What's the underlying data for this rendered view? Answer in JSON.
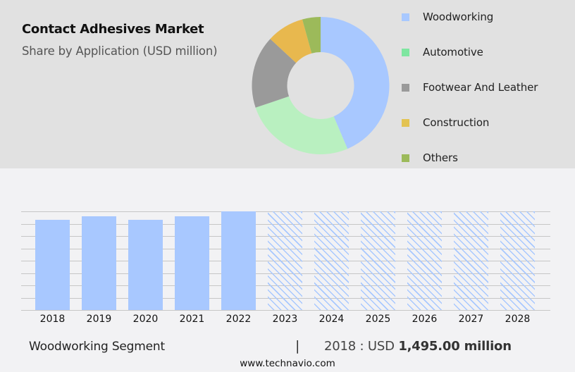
{
  "header": {
    "title": "Contact Adhesives Market",
    "subtitle": "Share by Application (USD million)"
  },
  "legend": [
    {
      "label": "Woodworking",
      "color": "#a8c8ff"
    },
    {
      "label": "Automotive",
      "color": "#7ee6a0"
    },
    {
      "label": "Footwear And Leather",
      "color": "#9a9a9a"
    },
    {
      "label": "Construction",
      "color": "#e3c352"
    },
    {
      "label": "Others",
      "color": "#9cba5a"
    }
  ],
  "footer": {
    "segment": "Woodworking Segment",
    "divider": "|",
    "value_prefix": "2018 : USD ",
    "value_bold": "1,495.00 million",
    "url": "www.technavio.com"
  },
  "colors": {
    "top_panel_bg": "#e1e1e1",
    "bottom_bg": "#f2f2f4",
    "bar": "#a8c8ff",
    "gridline": "#c6c6c6"
  },
  "chart_data": [
    {
      "type": "pie",
      "subtype": "donut",
      "title": "Contact Adhesives Market",
      "subtitle": "Share by Application (USD million)",
      "categories": [
        "Woodworking",
        "Automotive",
        "Footwear And Leather",
        "Construction",
        "Others"
      ],
      "values": [
        43.6,
        26.2,
        17.1,
        8.8,
        4.3
      ],
      "unit": "% share (estimated from arc angles)",
      "colors": [
        "#a8c8ff",
        "#b9f0c0",
        "#9a9a9a",
        "#e8b84e",
        "#9cba5a"
      ],
      "start_angle": "12 o'clock, clockwise",
      "legend_position": "right"
    },
    {
      "type": "bar",
      "title": "Woodworking Segment",
      "categories": [
        "2018",
        "2019",
        "2020",
        "2021",
        "2022",
        "2023",
        "2024",
        "2025",
        "2026",
        "2027",
        "2028"
      ],
      "values": [
        1495,
        1553,
        1495,
        1553,
        1635,
        null,
        null,
        null,
        null,
        null,
        null
      ],
      "forecast_placeholder": [
        "2023",
        "2024",
        "2025",
        "2026",
        "2027",
        "2028"
      ],
      "annotation": "2018 : USD 1,495.00 million",
      "xlabel": "",
      "ylabel": "USD million",
      "y_axis_labels_shown": false,
      "grid": true,
      "gridline_count": 9,
      "note": "Only 2018 value is labeled; other historic values estimated from bar heights. Forecast years shown as hatched full-height bars with no values."
    }
  ]
}
